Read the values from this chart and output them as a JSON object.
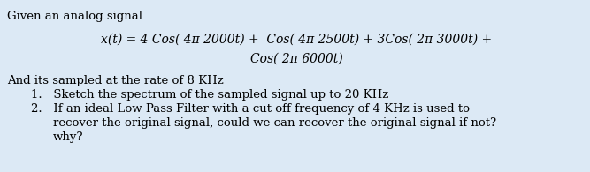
{
  "background_color": "#dce9f5",
  "inner_background": "#dce9f5",
  "text_color": "#000000",
  "title_line": "Given an analog signal",
  "equation_line1": "x(t) = 4 Cos( 4π 2000t) +  Cos( 4π 2500t) + 3Cos( 2π 3000t) +",
  "equation_line2": "Cos( 2π 6000t)",
  "body_line1": "And its sampled at the rate of 8 KHz",
  "item1": "Sketch the spectrum of the sampled signal up to 20 KHz",
  "item2_line1": "If an ideal Low Pass Filter with a cut off frequency of 4 KHz is used to",
  "item2_line2": "recover the original signal, could we can recover the original signal if not?",
  "item2_line3": "why?",
  "font_size_title": 9.5,
  "font_size_eq": 10,
  "font_size_body": 9.5,
  "font_family": "DejaVu Serif"
}
